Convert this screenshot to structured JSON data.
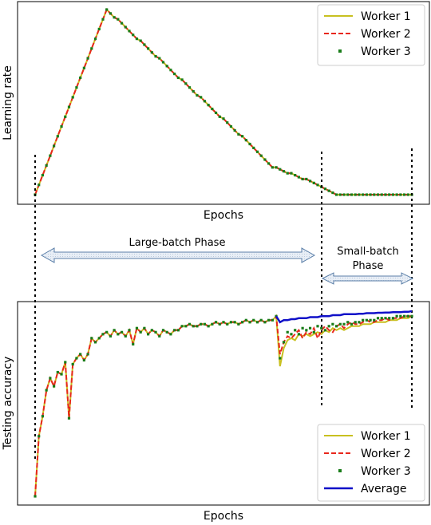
{
  "chart_data": [
    {
      "type": "line",
      "xlabel": "Epochs",
      "ylabel": "Learning rate",
      "ylim": [
        0,
        1
      ],
      "xlim": [
        0,
        100
      ],
      "grid": false,
      "legend_position": "top-right",
      "x": [
        0,
        1,
        2,
        3,
        4,
        5,
        6,
        7,
        8,
        9,
        10,
        11,
        12,
        13,
        14,
        15,
        16,
        17,
        18,
        19,
        20,
        21,
        22,
        23,
        24,
        25,
        26,
        27,
        28,
        29,
        30,
        31,
        32,
        33,
        34,
        35,
        36,
        37,
        38,
        39,
        40,
        41,
        42,
        43,
        44,
        45,
        46,
        47,
        48,
        49,
        50,
        51,
        52,
        53,
        54,
        55,
        56,
        57,
        58,
        59,
        60,
        61,
        62,
        63,
        64,
        65,
        66,
        67,
        68,
        69,
        70,
        71,
        72,
        73,
        74,
        75,
        76,
        77,
        78,
        79,
        80,
        81,
        82,
        83,
        84,
        85,
        86,
        87,
        88,
        89,
        90,
        91,
        92,
        93,
        94,
        95,
        96,
        97,
        98,
        99,
        100
      ],
      "series": [
        {
          "name": "Worker 1",
          "color": "#c8c020",
          "style": "solid",
          "values": [
            0.05,
            0.1,
            0.15,
            0.2,
            0.25,
            0.3,
            0.35,
            0.4,
            0.45,
            0.5,
            0.55,
            0.6,
            0.65,
            0.7,
            0.75,
            0.8,
            0.85,
            0.9,
            0.95,
            1.0,
            0.98,
            0.96,
            0.95,
            0.93,
            0.91,
            0.89,
            0.87,
            0.85,
            0.84,
            0.82,
            0.8,
            0.78,
            0.76,
            0.75,
            0.73,
            0.71,
            0.69,
            0.67,
            0.65,
            0.64,
            0.62,
            0.6,
            0.58,
            0.56,
            0.55,
            0.53,
            0.51,
            0.49,
            0.47,
            0.45,
            0.44,
            0.42,
            0.4,
            0.38,
            0.36,
            0.35,
            0.33,
            0.31,
            0.29,
            0.27,
            0.25,
            0.23,
            0.21,
            0.19,
            0.19,
            0.18,
            0.17,
            0.16,
            0.16,
            0.15,
            0.14,
            0.13,
            0.13,
            0.12,
            0.11,
            0.1,
            0.09,
            0.08,
            0.07,
            0.06,
            0.05,
            0.05,
            0.05,
            0.05,
            0.05,
            0.05,
            0.05,
            0.05,
            0.05,
            0.05,
            0.05,
            0.05,
            0.05,
            0.05,
            0.05,
            0.05,
            0.05,
            0.05,
            0.05,
            0.05,
            0.05
          ]
        },
        {
          "name": "Worker 2",
          "color": "#e8271c",
          "style": "dashed",
          "values": [
            0.05,
            0.1,
            0.15,
            0.2,
            0.25,
            0.3,
            0.35,
            0.4,
            0.45,
            0.5,
            0.55,
            0.6,
            0.65,
            0.7,
            0.75,
            0.8,
            0.85,
            0.9,
            0.95,
            1.0,
            0.98,
            0.96,
            0.95,
            0.93,
            0.91,
            0.89,
            0.87,
            0.85,
            0.84,
            0.82,
            0.8,
            0.78,
            0.76,
            0.75,
            0.73,
            0.71,
            0.69,
            0.67,
            0.65,
            0.64,
            0.62,
            0.6,
            0.58,
            0.56,
            0.55,
            0.53,
            0.51,
            0.49,
            0.47,
            0.45,
            0.44,
            0.42,
            0.4,
            0.38,
            0.36,
            0.35,
            0.33,
            0.31,
            0.29,
            0.27,
            0.25,
            0.23,
            0.21,
            0.19,
            0.19,
            0.18,
            0.17,
            0.16,
            0.16,
            0.15,
            0.14,
            0.13,
            0.13,
            0.12,
            0.11,
            0.1,
            0.09,
            0.08,
            0.07,
            0.06,
            0.05,
            0.05,
            0.05,
            0.05,
            0.05,
            0.05,
            0.05,
            0.05,
            0.05,
            0.05,
            0.05,
            0.05,
            0.05,
            0.05,
            0.05,
            0.05,
            0.05,
            0.05,
            0.05,
            0.05,
            0.05
          ]
        },
        {
          "name": "Worker 3",
          "color": "#1a7d1a",
          "style": "dots",
          "values": [
            0.05,
            0.1,
            0.15,
            0.2,
            0.25,
            0.3,
            0.35,
            0.4,
            0.45,
            0.5,
            0.55,
            0.6,
            0.65,
            0.7,
            0.75,
            0.8,
            0.85,
            0.9,
            0.95,
            1.0,
            0.98,
            0.96,
            0.95,
            0.93,
            0.91,
            0.89,
            0.87,
            0.85,
            0.84,
            0.82,
            0.8,
            0.78,
            0.76,
            0.75,
            0.73,
            0.71,
            0.69,
            0.67,
            0.65,
            0.64,
            0.62,
            0.6,
            0.58,
            0.56,
            0.55,
            0.53,
            0.51,
            0.49,
            0.47,
            0.45,
            0.44,
            0.42,
            0.4,
            0.38,
            0.36,
            0.35,
            0.33,
            0.31,
            0.29,
            0.27,
            0.25,
            0.23,
            0.21,
            0.19,
            0.19,
            0.18,
            0.17,
            0.16,
            0.16,
            0.15,
            0.14,
            0.13,
            0.13,
            0.12,
            0.11,
            0.1,
            0.09,
            0.08,
            0.07,
            0.06,
            0.05,
            0.05,
            0.05,
            0.05,
            0.05,
            0.05,
            0.05,
            0.05,
            0.05,
            0.05,
            0.05,
            0.05,
            0.05,
            0.05,
            0.05,
            0.05,
            0.05,
            0.05,
            0.05,
            0.05,
            0.05
          ]
        }
      ]
    },
    {
      "type": "line",
      "xlabel": "Epochs",
      "ylabel": "Testing accuracy",
      "ylim": [
        0,
        1
      ],
      "xlim": [
        0,
        100
      ],
      "grid": false,
      "legend_position": "bottom-right",
      "x": [
        0,
        1,
        2,
        3,
        4,
        5,
        6,
        7,
        8,
        9,
        10,
        11,
        12,
        13,
        14,
        15,
        16,
        17,
        18,
        19,
        20,
        21,
        22,
        23,
        24,
        25,
        26,
        27,
        28,
        29,
        30,
        31,
        32,
        33,
        34,
        35,
        36,
        37,
        38,
        39,
        40,
        41,
        42,
        43,
        44,
        45,
        46,
        47,
        48,
        49,
        50,
        51,
        52,
        53,
        54,
        55,
        56,
        57,
        58,
        59,
        60,
        61,
        62,
        63,
        64,
        65,
        66,
        67,
        68,
        69,
        70,
        71,
        72,
        73,
        74,
        75,
        76,
        77,
        78,
        79,
        80,
        81,
        82,
        83,
        84,
        85,
        86,
        87,
        88,
        89,
        90,
        91,
        92,
        93,
        94,
        95,
        96,
        97,
        98,
        99,
        100
      ],
      "series": [
        {
          "name": "Worker 1",
          "color": "#c8c020",
          "style": "solid",
          "values": [
            0.05,
            0.35,
            0.45,
            0.58,
            0.64,
            0.6,
            0.67,
            0.66,
            0.72,
            0.44,
            0.71,
            0.74,
            0.76,
            0.73,
            0.76,
            0.84,
            0.82,
            0.84,
            0.86,
            0.87,
            0.85,
            0.88,
            0.86,
            0.87,
            0.85,
            0.88,
            0.81,
            0.89,
            0.87,
            0.89,
            0.86,
            0.88,
            0.87,
            0.85,
            0.88,
            0.87,
            0.86,
            0.88,
            0.88,
            0.9,
            0.9,
            0.91,
            0.9,
            0.9,
            0.91,
            0.91,
            0.9,
            0.91,
            0.92,
            0.91,
            0.92,
            0.91,
            0.92,
            0.92,
            0.91,
            0.92,
            0.93,
            0.92,
            0.93,
            0.92,
            0.93,
            0.92,
            0.93,
            0.93,
            0.95,
            0.7,
            0.79,
            0.83,
            0.84,
            0.83,
            0.86,
            0.85,
            0.86,
            0.85,
            0.86,
            0.87,
            0.86,
            0.88,
            0.87,
            0.89,
            0.88,
            0.89,
            0.88,
            0.89,
            0.9,
            0.9,
            0.9,
            0.91,
            0.91,
            0.91,
            0.92,
            0.92,
            0.92,
            0.92,
            0.93,
            0.93,
            0.93,
            0.94,
            0.94,
            0.94,
            0.95
          ]
        },
        {
          "name": "Worker 2",
          "color": "#e8271c",
          "style": "dashed",
          "values": [
            0.05,
            0.35,
            0.45,
            0.58,
            0.64,
            0.6,
            0.67,
            0.66,
            0.72,
            0.44,
            0.71,
            0.74,
            0.76,
            0.73,
            0.76,
            0.84,
            0.82,
            0.84,
            0.86,
            0.87,
            0.85,
            0.88,
            0.86,
            0.87,
            0.85,
            0.88,
            0.81,
            0.89,
            0.87,
            0.89,
            0.86,
            0.88,
            0.87,
            0.85,
            0.88,
            0.87,
            0.86,
            0.88,
            0.88,
            0.9,
            0.9,
            0.91,
            0.9,
            0.9,
            0.91,
            0.91,
            0.9,
            0.91,
            0.92,
            0.91,
            0.92,
            0.91,
            0.92,
            0.92,
            0.91,
            0.92,
            0.93,
            0.92,
            0.93,
            0.92,
            0.93,
            0.92,
            0.93,
            0.93,
            0.95,
            0.76,
            0.82,
            0.85,
            0.84,
            0.86,
            0.88,
            0.84,
            0.87,
            0.86,
            0.89,
            0.84,
            0.88,
            0.9,
            0.88,
            0.87,
            0.9,
            0.91,
            0.89,
            0.91,
            0.92,
            0.91,
            0.91,
            0.92,
            0.93,
            0.92,
            0.92,
            0.93,
            0.93,
            0.94,
            0.93,
            0.94,
            0.94,
            0.94,
            0.95,
            0.95,
            0.95
          ]
        },
        {
          "name": "Worker 3",
          "color": "#1a7d1a",
          "style": "dots",
          "values": [
            0.05,
            0.35,
            0.45,
            0.58,
            0.64,
            0.6,
            0.67,
            0.66,
            0.72,
            0.44,
            0.71,
            0.74,
            0.76,
            0.73,
            0.76,
            0.84,
            0.82,
            0.84,
            0.86,
            0.87,
            0.85,
            0.88,
            0.86,
            0.87,
            0.85,
            0.88,
            0.81,
            0.89,
            0.87,
            0.89,
            0.86,
            0.88,
            0.87,
            0.85,
            0.88,
            0.87,
            0.86,
            0.88,
            0.88,
            0.9,
            0.9,
            0.91,
            0.9,
            0.9,
            0.91,
            0.91,
            0.9,
            0.91,
            0.92,
            0.91,
            0.92,
            0.91,
            0.92,
            0.92,
            0.91,
            0.92,
            0.93,
            0.92,
            0.93,
            0.92,
            0.93,
            0.92,
            0.93,
            0.93,
            0.95,
            0.74,
            0.82,
            0.87,
            0.86,
            0.88,
            0.86,
            0.89,
            0.88,
            0.89,
            0.87,
            0.9,
            0.89,
            0.88,
            0.9,
            0.91,
            0.9,
            0.91,
            0.91,
            0.92,
            0.91,
            0.92,
            0.92,
            0.93,
            0.93,
            0.93,
            0.93,
            0.94,
            0.94,
            0.94,
            0.94,
            0.94,
            0.95,
            0.95,
            0.95,
            0.95,
            0.95
          ]
        },
        {
          "name": "Average",
          "color": "#1010c8",
          "style": "solid-thick",
          "values": [
            null,
            null,
            null,
            null,
            null,
            null,
            null,
            null,
            null,
            null,
            null,
            null,
            null,
            null,
            null,
            null,
            null,
            null,
            null,
            null,
            null,
            null,
            null,
            null,
            null,
            null,
            null,
            null,
            null,
            null,
            null,
            null,
            null,
            null,
            null,
            null,
            null,
            null,
            null,
            null,
            null,
            null,
            null,
            null,
            null,
            null,
            null,
            null,
            null,
            null,
            null,
            null,
            null,
            null,
            null,
            null,
            null,
            null,
            null,
            null,
            null,
            null,
            null,
            null,
            0.95,
            0.92,
            0.93,
            0.93,
            0.935,
            0.935,
            0.94,
            0.94,
            0.94,
            0.945,
            0.945,
            0.945,
            0.95,
            0.95,
            0.95,
            0.955,
            0.955,
            0.955,
            0.96,
            0.96,
            0.96,
            0.96,
            0.962,
            0.962,
            0.965,
            0.965,
            0.965,
            0.967,
            0.967,
            0.968,
            0.968,
            0.97,
            0.97,
            0.97,
            0.972,
            0.972,
            0.975
          ]
        }
      ]
    }
  ],
  "annotations": {
    "large_batch_label": "Large-batch Phase",
    "small_batch_label_line1": "Small-batch",
    "small_batch_label_line2": "Phase",
    "phase_boundaries_epochs": [
      0,
      64,
      100
    ],
    "arrow_fill": "#e8eef6",
    "arrow_stroke": "#5b7fa8"
  }
}
